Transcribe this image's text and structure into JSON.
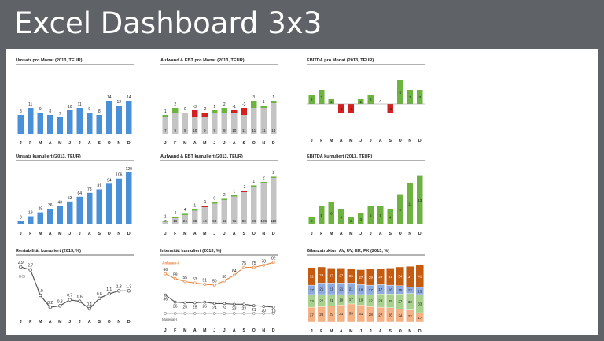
{
  "page": {
    "title": "Excel Dashboard 3x3"
  },
  "months": [
    "J",
    "F",
    "M",
    "A",
    "M",
    "J",
    "J",
    "A",
    "S",
    "O",
    "N",
    "D"
  ],
  "colors": {
    "blue": "#4a90d9",
    "green": "#6db33f",
    "red": "#d42020",
    "grey": "#c4c4c4",
    "orange": "#e8853f",
    "dark": "#555555"
  },
  "chart_data": [
    {
      "id": "umsatz",
      "type": "bar",
      "title": "Umsatz pro Monat (2013, TEUR)",
      "categories": [
        "J",
        "F",
        "M",
        "A",
        "M",
        "J",
        "J",
        "A",
        "S",
        "O",
        "N",
        "D"
      ],
      "values": [
        8,
        11,
        9,
        8,
        7,
        10,
        11,
        9,
        8,
        14,
        12,
        14
      ]
    },
    {
      "id": "aufwand",
      "type": "bar",
      "title": "Aufwand & EBT pro Monat (2013, TEUR)",
      "categories": [
        "J",
        "F",
        "M",
        "A",
        "M",
        "J",
        "J",
        "A",
        "S",
        "O",
        "N",
        "D"
      ],
      "series": [
        {
          "name": "Aufwand",
          "values": [
            7,
            9,
            9,
            10,
            9,
            9,
            9,
            10,
            11,
            11,
            11,
            13
          ]
        },
        {
          "name": "EBT",
          "values": [
            1,
            2,
            0,
            -3,
            -2,
            1,
            2,
            -1,
            -3,
            3,
            1,
            1
          ]
        }
      ]
    },
    {
      "id": "ebitda",
      "type": "bar",
      "title": "EBITDA pro Monat (2013, TEUR)",
      "categories": [
        "J",
        "F",
        "M",
        "A",
        "M",
        "J",
        "J",
        "A",
        "S",
        "O",
        "N",
        "D"
      ],
      "values": [
        2,
        3,
        1,
        -2,
        -2,
        1,
        2,
        0,
        -2,
        5,
        3,
        3
      ]
    },
    {
      "id": "umsatz_kum",
      "type": "bar",
      "title": "Umsatz kumuliert (2013, TEUR)",
      "categories": [
        "J",
        "F",
        "M",
        "A",
        "M",
        "J",
        "J",
        "A",
        "S",
        "O",
        "N",
        "D"
      ],
      "values": [
        8,
        19,
        28,
        36,
        43,
        53,
        64,
        73,
        81,
        94,
        106,
        120
      ]
    },
    {
      "id": "aufwand_kum",
      "type": "bar",
      "title": "Aufwand & EBT kumuliert (2013, TEUR)",
      "categories": [
        "J",
        "F",
        "M",
        "A",
        "M",
        "J",
        "J",
        "A",
        "S",
        "O",
        "N",
        "D"
      ],
      "series": [
        {
          "name": "Aufwand",
          "values": [
            7,
            16,
            24,
            35,
            44,
            53,
            62,
            71,
            82,
            96,
            105,
            118
          ]
        },
        {
          "name": "EBT",
          "values": [
            1,
            4,
            4,
            1,
            -1,
            0,
            2,
            1,
            -2,
            1,
            2,
            2
          ]
        }
      ]
    },
    {
      "id": "ebitda_kum",
      "type": "bar",
      "title": "EBITDA kumuliert (2013, TEUR)",
      "categories": [
        "J",
        "F",
        "M",
        "A",
        "M",
        "J",
        "J",
        "A",
        "S",
        "O",
        "N",
        "D"
      ],
      "values": [
        2,
        5,
        6,
        4,
        2,
        3,
        5,
        5,
        4,
        8,
        11,
        13
      ]
    },
    {
      "id": "rentab",
      "type": "line",
      "title": "Rentabilität kumuliert (2013, %)",
      "categories": [
        "J",
        "F",
        "M",
        "A",
        "M",
        "J",
        "J",
        "A",
        "S",
        "O",
        "N",
        "D"
      ],
      "values": [
        2.9,
        2.7,
        1.0,
        0.2,
        0.3,
        0.7,
        0.6,
        0.1,
        0.8,
        1.1,
        1.3,
        1.3
      ],
      "series_label": "ROI"
    },
    {
      "id": "intens",
      "type": "line",
      "title": "Intensität kumuliert (2013, %)",
      "categories": [
        "J",
        "F",
        "M",
        "A",
        "M",
        "J",
        "J",
        "A",
        "S",
        "O",
        "N",
        "D"
      ],
      "series": [
        {
          "name": "Anlagen-I",
          "values": [
            66,
            59,
            55,
            53,
            51,
            50,
            56,
            64,
            75,
            75,
            78,
            82
          ]
        },
        {
          "name": "",
          "values": [
            36,
            26,
            25,
            25,
            26,
            24,
            24,
            23,
            23,
            21,
            20,
            19
          ]
        },
        {
          "name": "Material-I",
          "values": [
            10,
            10,
            10,
            10,
            10,
            10,
            10,
            10,
            10,
            10,
            10,
            10
          ]
        }
      ]
    },
    {
      "id": "bilanz",
      "type": "bar",
      "title": "Bilanzstruktur: AV, UV, EK, FK (2013, %)",
      "categories": [
        "J",
        "F",
        "M",
        "A",
        "M",
        "J",
        "J",
        "A",
        "S",
        "O",
        "N",
        "D"
      ],
      "series": [
        {
          "name": "",
          "values": [
            27,
            28,
            29,
            31,
            33,
            31,
            28,
            27,
            26,
            24,
            22,
            17
          ]
        },
        {
          "name": "",
          "values": [
            23,
            22,
            21,
            19,
            17,
            19,
            22,
            24,
            25,
            27,
            30,
            33
          ]
        },
        {
          "name": "",
          "values": [
            17,
            21,
            21,
            21,
            21,
            18,
            17,
            17,
            16,
            15,
            12,
            13
          ]
        },
        {
          "name": "",
          "values": [
            32,
            29,
            27,
            27,
            26,
            27,
            29,
            29,
            31,
            34,
            37,
            41
          ]
        }
      ]
    }
  ]
}
